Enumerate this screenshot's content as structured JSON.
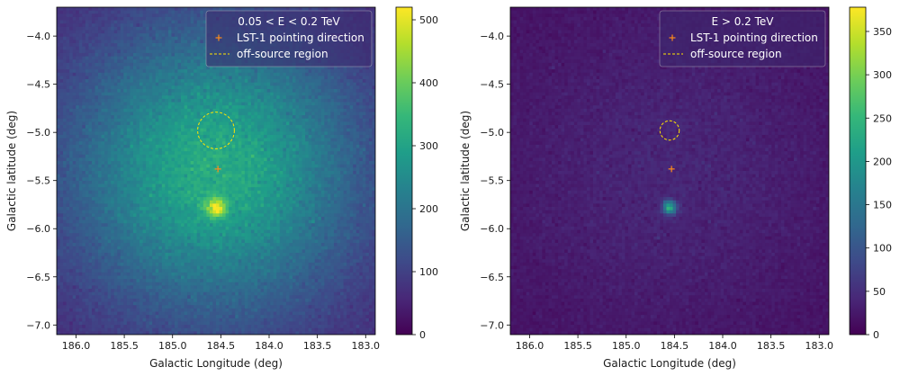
{
  "chart_data": [
    {
      "type": "heatmap",
      "title": "",
      "legend": {
        "placement": "top-right",
        "title": "0.05 < E < 0.2 TeV",
        "entries": [
          {
            "label": "LST-1 pointing direction",
            "marker": "+",
            "color": "#ff8c1a"
          },
          {
            "label": "off-source region",
            "style": "dashed-circle",
            "color": "#ffe600"
          }
        ]
      },
      "xlabel": "Galactic Longitude (deg)",
      "ylabel": "Galactic latitude (deg)",
      "xlim": [
        186.2,
        182.9
      ],
      "ylim": [
        -7.1,
        -3.7
      ],
      "xticks": [
        186.0,
        185.5,
        185.0,
        184.5,
        184.0,
        183.5,
        183.0
      ],
      "xtick_labels": [
        "186.0",
        "185.5",
        "185.0",
        "184.5",
        "184.0",
        "183.5",
        "183.0"
      ],
      "yticks": [
        -4.0,
        -4.5,
        -5.0,
        -5.5,
        -6.0,
        -6.5,
        -7.0
      ],
      "ytick_labels": [
        "-4.0",
        "-4.5",
        "-5.0",
        "-5.5",
        "-6.0",
        "-6.5",
        "-7.0"
      ],
      "colorbar": {
        "colormap": "viridis",
        "range": [
          0,
          520
        ],
        "ticks": [
          0,
          100,
          200,
          300,
          400,
          500
        ],
        "tick_labels": [
          "0",
          "100",
          "200",
          "300",
          "400",
          "500"
        ]
      },
      "model": {
        "background_center": [
          184.55,
          -5.38
        ],
        "background_sigma_deg": 1.05,
        "background_peak": 320,
        "floor": 55,
        "source_center": [
          184.55,
          -5.78
        ],
        "source_sigma_deg": 0.07,
        "source_peak": 230
      },
      "pointing_direction": [
        184.53,
        -5.38
      ],
      "off_region": {
        "center": [
          184.55,
          -4.98
        ],
        "radius_deg": 0.19
      }
    },
    {
      "type": "heatmap",
      "title": "",
      "legend": {
        "placement": "top-right",
        "title": "E > 0.2 TeV",
        "entries": [
          {
            "label": "LST-1 pointing direction",
            "marker": "+",
            "color": "#ff8c1a"
          },
          {
            "label": "off-source region",
            "style": "dashed-circle",
            "color": "#ffe600"
          }
        ]
      },
      "xlabel": "Galactic Longitude (deg)",
      "ylabel": "Galactic latitude (deg)",
      "xlim": [
        186.2,
        182.9
      ],
      "ylim": [
        -7.1,
        -3.7
      ],
      "xticks": [
        186.0,
        185.5,
        185.0,
        184.5,
        184.0,
        183.5,
        183.0
      ],
      "xtick_labels": [
        "186.0",
        "185.5",
        "185.0",
        "184.5",
        "184.0",
        "183.5",
        "183.0"
      ],
      "yticks": [
        -4.0,
        -4.5,
        -5.0,
        -5.5,
        -6.0,
        -6.5,
        -7.0
      ],
      "ytick_labels": [
        "-4.0",
        "-4.5",
        "-5.0",
        "-5.5",
        "-6.0",
        "-6.5",
        "-7.0"
      ],
      "colorbar": {
        "colormap": "viridis",
        "range": [
          0,
          378
        ],
        "ticks": [
          0,
          50,
          100,
          150,
          200,
          250,
          300,
          350
        ],
        "tick_labels": [
          "0",
          "50",
          "100",
          "150",
          "200",
          "250",
          "300",
          "350"
        ]
      },
      "model": {
        "background_center": [
          184.55,
          -5.38
        ],
        "background_sigma_deg": 1.3,
        "background_peak": 40,
        "floor": 15,
        "source_center": [
          184.55,
          -5.78
        ],
        "source_sigma_deg": 0.05,
        "source_peak": 200
      },
      "pointing_direction": [
        184.53,
        -5.38
      ],
      "off_region": {
        "center": [
          184.55,
          -4.98
        ],
        "radius_deg": 0.1
      }
    }
  ]
}
